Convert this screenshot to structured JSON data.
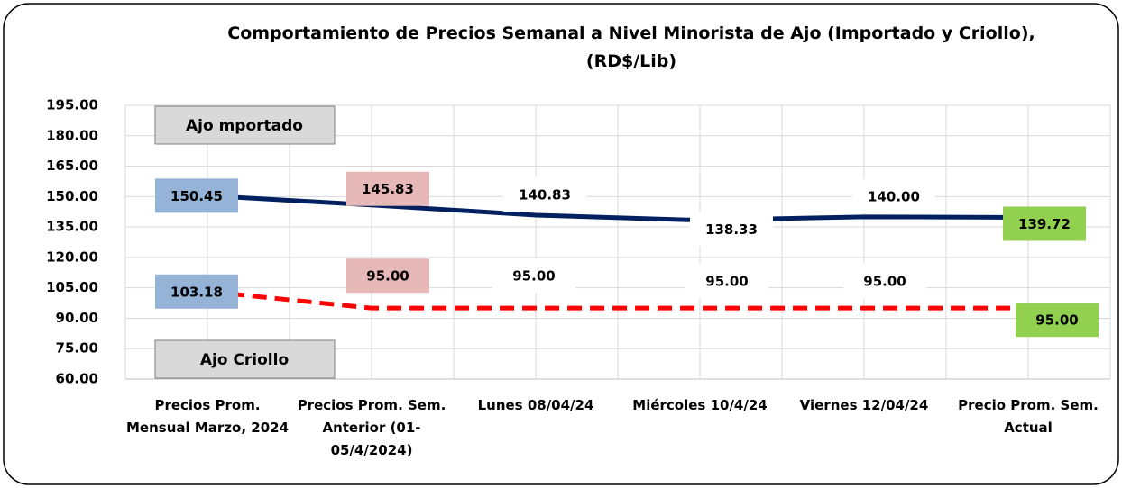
{
  "chart_data": {
    "type": "line",
    "title": "Comportamiento de Precios Semanal a Nivel Minorista de Ajo (Importado y Criollo), (RD$/Lib)",
    "categories": [
      "Precios Prom. Mensual Marzo, 2024",
      "Precios Prom. Sem. Anterior (01-05/4/2024)",
      "Lunes  08/04/24",
      "Miércoles 10/4/24",
      "Viernes 12/04/24",
      "Precio Prom. Sem. Actual"
    ],
    "series": [
      {
        "name": "Ajo mportado",
        "color": "#002060",
        "dashed": false,
        "values": [
          150.45,
          145.83,
          140.83,
          138.33,
          140.0,
          139.72
        ],
        "value_labels": [
          "150.45",
          "145.83",
          "140.83",
          "138.33",
          "140.00",
          "139.72"
        ],
        "label_colors": [
          "#95b3d7",
          "#e6b8b7",
          "#ffffff",
          "#ffffff",
          "#ffffff",
          "#92d050"
        ]
      },
      {
        "name": "Ajo Criollo",
        "color": "#ff0000",
        "dashed": true,
        "values": [
          103.18,
          95.0,
          95.0,
          95.0,
          95.0,
          95.0
        ],
        "value_labels": [
          "103.18",
          "95.00",
          "95.00",
          "95.00",
          "95.00",
          "95.00"
        ],
        "label_colors": [
          "#95b3d7",
          "#e6b8b7",
          "#ffffff",
          "#ffffff",
          "#ffffff",
          "#92d050"
        ]
      }
    ],
    "ylim": [
      60,
      195
    ],
    "yticks": [
      {
        "value": 60,
        "label": "60.00"
      },
      {
        "value": 75,
        "label": "75.00"
      },
      {
        "value": 90,
        "label": "90.00"
      },
      {
        "value": 105,
        "label": "105.00"
      },
      {
        "value": 120,
        "label": "120.00"
      },
      {
        "value": 135,
        "label": "135.00"
      },
      {
        "value": 150,
        "label": "150.00"
      },
      {
        "value": 165,
        "label": "165.00"
      },
      {
        "value": 180,
        "label": "180.00"
      },
      {
        "value": 195,
        "label": "195.00"
      }
    ],
    "grid": true
  }
}
